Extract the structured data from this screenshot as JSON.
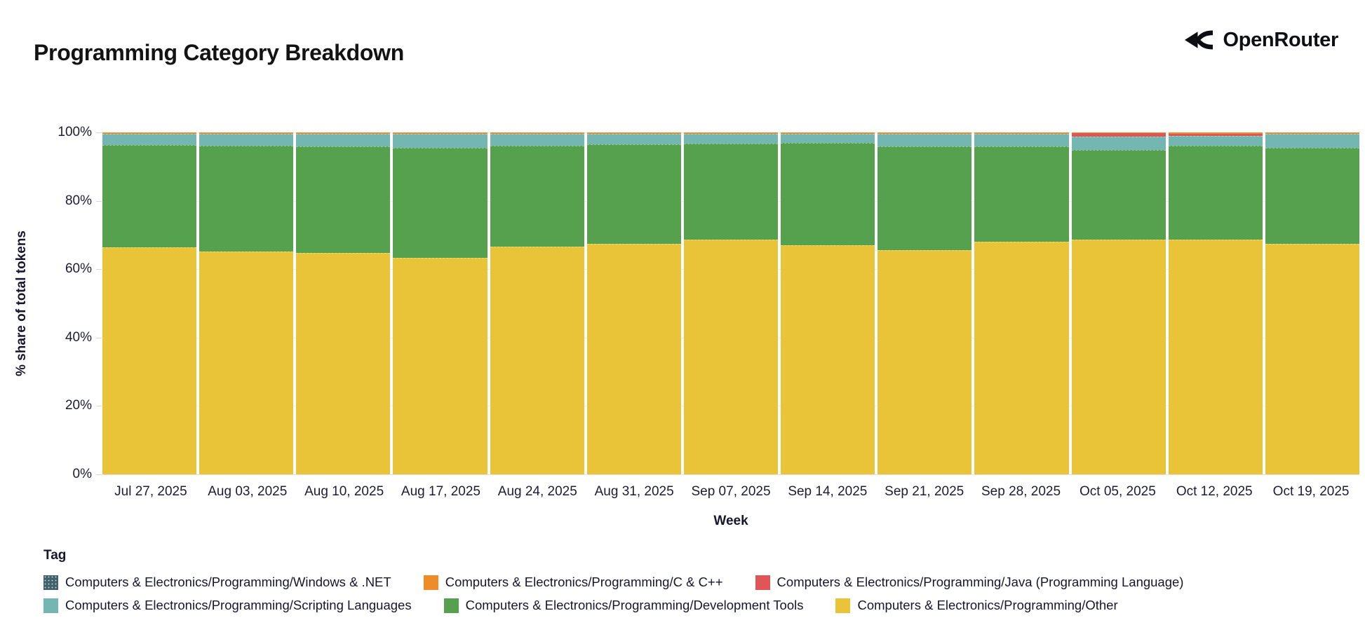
{
  "header": {
    "title": "Programming Category Breakdown",
    "brand": "OpenRouter"
  },
  "chart_data": {
    "type": "bar",
    "stacked": true,
    "normalized_percent": true,
    "title": "Programming Category Breakdown",
    "xlabel": "Week",
    "ylabel": "% share of total tokens",
    "ylim": [
      0,
      100
    ],
    "yticks": [
      "0%",
      "20%",
      "40%",
      "60%",
      "80%",
      "100%"
    ],
    "grid": "horizontal-faint",
    "legend_position": "bottom",
    "legend_title": "Tag",
    "categories": [
      "Jul 27, 2025",
      "Aug 03, 2025",
      "Aug 10, 2025",
      "Aug 17, 2025",
      "Aug 24, 2025",
      "Aug 31, 2025",
      "Sep 07, 2025",
      "Sep 14, 2025",
      "Sep 21, 2025",
      "Sep 28, 2025",
      "Oct 05, 2025",
      "Oct 12, 2025",
      "Oct 19, 2025"
    ],
    "series": [
      {
        "name": "Computers & Electronics/Programming/Other",
        "color": "#e9c439",
        "values": [
          66.4,
          65.2,
          64.8,
          63.3,
          66.6,
          67.4,
          68.6,
          67.0,
          65.6,
          68.0,
          68.6,
          68.7,
          67.4
        ]
      },
      {
        "name": "Computers & Electronics/Programming/Development Tools",
        "color": "#55a14e",
        "values": [
          29.9,
          30.9,
          31.1,
          32.1,
          29.5,
          29.2,
          28.2,
          29.9,
          30.4,
          28.0,
          26.2,
          27.5,
          28.1
        ]
      },
      {
        "name": "Computers & Electronics/Programming/Scripting Languages",
        "color": "#74b6b2",
        "values": [
          3.3,
          3.5,
          3.7,
          4.2,
          3.5,
          3.0,
          2.8,
          2.7,
          3.6,
          3.6,
          4.0,
          2.7,
          4.1
        ]
      },
      {
        "name": "Computers & Electronics/Programming/Java (Programming Language)",
        "color": "#e05656",
        "values": [
          0.05,
          0.05,
          0.05,
          0.05,
          0.05,
          0.05,
          0.05,
          0.05,
          0.05,
          0.05,
          1.0,
          0.8,
          0.05
        ]
      },
      {
        "name": "Computers & Electronics/Programming/C & C++",
        "color": "#f08c28",
        "values": [
          0.3,
          0.3,
          0.3,
          0.3,
          0.3,
          0.3,
          0.3,
          0.3,
          0.3,
          0.3,
          0.15,
          0.25,
          0.3
        ]
      },
      {
        "name": "Computers & Electronics/Programming/Windows & .NET",
        "color": "#44606c",
        "pattern": "dots",
        "values": [
          0.05,
          0.05,
          0.05,
          0.05,
          0.05,
          0.05,
          0.05,
          0.05,
          0.05,
          0.05,
          0.05,
          0.05,
          0.05
        ]
      }
    ],
    "legend": {
      "title": "Tag",
      "rows": [
        [
          {
            "label": "Computers & Electronics/Programming/Windows & .NET",
            "color": "#44606c",
            "pattern": "dots"
          },
          {
            "label": "Computers & Electronics/Programming/C & C++",
            "color": "#f08c28"
          },
          {
            "label": "Computers & Electronics/Programming/Java (Programming Language)",
            "color": "#e05656"
          }
        ],
        [
          {
            "label": "Computers & Electronics/Programming/Scripting Languages",
            "color": "#74b6b2"
          },
          {
            "label": "Computers & Electronics/Programming/Development Tools",
            "color": "#55a14e"
          },
          {
            "label": "Computers & Electronics/Programming/Other",
            "color": "#e9c439"
          }
        ]
      ]
    }
  }
}
